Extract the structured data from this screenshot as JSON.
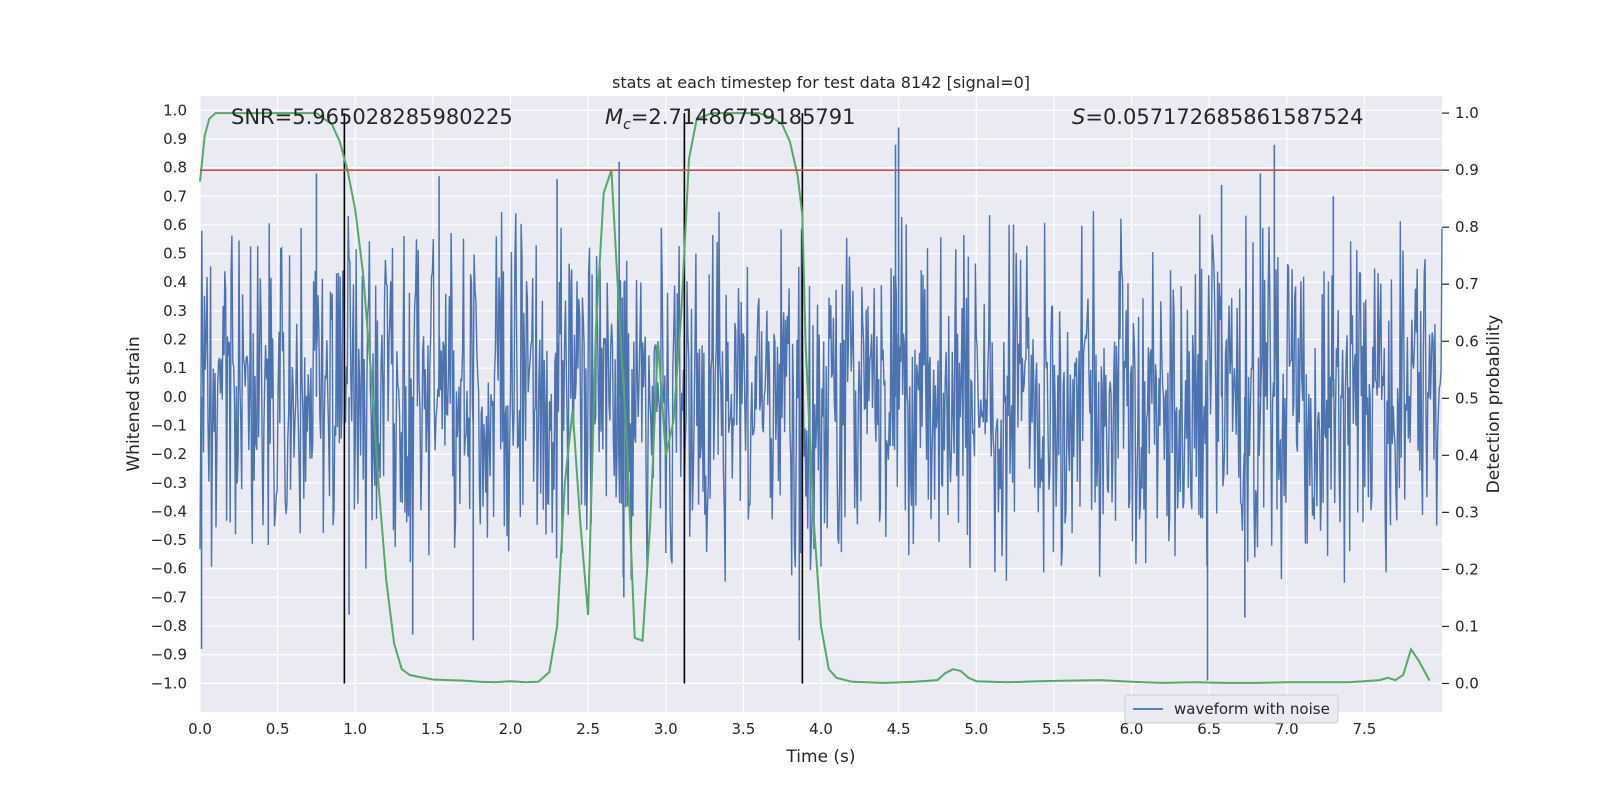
{
  "chart_data": {
    "type": "line",
    "title": "stats at each timestep for test data 8142 [signal=0]",
    "xlabel": "Time (s)",
    "ylabel_left": "Whitened strain",
    "ylabel_right": "Detection probability",
    "xlim": [
      0,
      8.0
    ],
    "ylim_left": [
      -1.1,
      1.05
    ],
    "ylim_right": [
      -0.05,
      1.03
    ],
    "x_ticks": [
      0.0,
      0.5,
      1.0,
      1.5,
      2.0,
      2.5,
      3.0,
      3.5,
      4.0,
      4.5,
      5.0,
      5.5,
      6.0,
      6.5,
      7.0,
      7.5
    ],
    "x_tick_labels": [
      "0.0",
      "0.5",
      "1.0",
      "1.5",
      "2.0",
      "2.5",
      "3.0",
      "3.5",
      "4.0",
      "4.5",
      "5.0",
      "5.5",
      "6.0",
      "6.5",
      "7.0",
      "7.5"
    ],
    "y_left_ticks": [
      1.0,
      0.9,
      0.8,
      0.7,
      0.6,
      0.5,
      0.4,
      0.3,
      0.2,
      0.1,
      0.0,
      -0.1,
      -0.2,
      -0.3,
      -0.4,
      -0.5,
      -0.6,
      -0.7,
      -0.8,
      -0.9,
      -1.0
    ],
    "y_left_tick_labels": [
      "1.0",
      "0.9",
      "0.8",
      "0.7",
      "0.6",
      "0.5",
      "0.4",
      "0.3",
      "0.2",
      "0.1",
      "0.0",
      "−0.1",
      "−0.2",
      "−0.3",
      "−0.4",
      "−0.5",
      "−0.6",
      "−0.7",
      "−0.8",
      "−0.9",
      "−1.0"
    ],
    "y_right_ticks": [
      1.0,
      0.9,
      0.8,
      0.7,
      0.6,
      0.5,
      0.4,
      0.3,
      0.2,
      0.1,
      0.0
    ],
    "y_right_tick_labels": [
      "1.0",
      "0.9",
      "0.8",
      "0.7",
      "0.6",
      "0.5",
      "0.4",
      "0.3",
      "0.2",
      "0.1",
      "0.0"
    ],
    "annotations": {
      "snr": "SNR=5.965028285980225",
      "mc_symbol": "M",
      "mc_sub": "c",
      "mc_value": "=2.71486759185791",
      "s_symbol": "S",
      "s_value": "=0.057172685861587524"
    },
    "legend": {
      "label": "waveform with noise",
      "placement": "lower-right"
    },
    "threshold_probability": 0.9,
    "vertical_markers_s": [
      0.93,
      3.12,
      3.88
    ],
    "waveform": {
      "name": "waveform with noise",
      "noise_envelope_strain": [
        -0.22,
        0.23
      ],
      "notable_peaks": [
        {
          "t": 0.01,
          "v": -0.88
        },
        {
          "t": 0.75,
          "v": 0.78
        },
        {
          "t": 0.96,
          "v": -0.76
        },
        {
          "t": 1.37,
          "v": -0.83
        },
        {
          "t": 1.54,
          "v": 0.77
        },
        {
          "t": 1.76,
          "v": -0.85
        },
        {
          "t": 2.3,
          "v": 0.76
        },
        {
          "t": 2.7,
          "v": 0.82
        },
        {
          "t": 2.73,
          "v": -0.7
        },
        {
          "t": 3.86,
          "v": -0.85
        },
        {
          "t": 4.5,
          "v": 0.94
        },
        {
          "t": 4.48,
          "v": 0.88
        },
        {
          "t": 6.49,
          "v": -0.99
        },
        {
          "t": 6.83,
          "v": 0.78
        },
        {
          "t": 6.92,
          "v": 0.88
        },
        {
          "t": 6.73,
          "v": -0.77
        },
        {
          "t": 6.58,
          "v": 0.74
        },
        {
          "t": 7.3,
          "v": 0.7
        }
      ]
    },
    "detection_probability": {
      "name": "detection probability",
      "x": [
        0.0,
        0.03,
        0.06,
        0.1,
        0.2,
        0.3,
        0.4,
        0.5,
        0.6,
        0.7,
        0.75,
        0.8,
        0.85,
        0.9,
        0.95,
        1.0,
        1.05,
        1.1,
        1.15,
        1.2,
        1.25,
        1.3,
        1.35,
        1.4,
        1.5,
        1.6,
        1.7,
        1.8,
        1.9,
        2.0,
        2.1,
        2.18,
        2.25,
        2.3,
        2.35,
        2.4,
        2.45,
        2.5,
        2.55,
        2.6,
        2.65,
        2.7,
        2.75,
        2.8,
        2.85,
        2.9,
        2.95,
        3.0,
        3.05,
        3.1,
        3.15,
        3.2,
        3.3,
        3.4,
        3.5,
        3.6,
        3.7,
        3.75,
        3.8,
        3.85,
        3.88,
        3.9,
        3.95,
        4.0,
        4.05,
        4.1,
        4.2,
        4.4,
        4.6,
        4.75,
        4.8,
        4.85,
        4.9,
        4.95,
        5.0,
        5.1,
        5.2,
        5.4,
        5.6,
        5.8,
        6.0,
        6.2,
        6.4,
        6.6,
        6.8,
        7.0,
        7.2,
        7.4,
        7.6,
        7.65,
        7.7,
        7.75,
        7.8,
        7.85,
        7.92
      ],
      "y": [
        0.88,
        0.96,
        0.99,
        1.0,
        1.0,
        1.0,
        1.0,
        1.0,
        1.0,
        1.0,
        1.0,
        0.99,
        0.98,
        0.95,
        0.9,
        0.83,
        0.72,
        0.55,
        0.35,
        0.18,
        0.07,
        0.025,
        0.015,
        0.012,
        0.007,
        0.006,
        0.005,
        0.003,
        0.002,
        0.004,
        0.002,
        0.003,
        0.02,
        0.1,
        0.35,
        0.48,
        0.28,
        0.12,
        0.62,
        0.86,
        0.9,
        0.65,
        0.42,
        0.08,
        0.075,
        0.28,
        0.6,
        0.4,
        0.46,
        0.65,
        0.92,
        0.99,
        1.0,
        1.0,
        1.0,
        1.0,
        0.99,
        0.98,
        0.95,
        0.89,
        0.82,
        0.6,
        0.3,
        0.1,
        0.025,
        0.01,
        0.003,
        0.001,
        0.003,
        0.006,
        0.018,
        0.025,
        0.022,
        0.01,
        0.004,
        0.003,
        0.002,
        0.004,
        0.005,
        0.006,
        0.003,
        0.001,
        0.002,
        0.001,
        0.001,
        0.002,
        0.002,
        0.002,
        0.006,
        0.01,
        0.006,
        0.015,
        0.06,
        0.04,
        0.005
      ]
    },
    "colors": {
      "axes_bg": "#eaeaf2",
      "grid": "#ffffff",
      "waveform": "#4c72b0",
      "probability": "#55a868",
      "threshold": "#c44e52",
      "markers": "#000000",
      "text": "#262626"
    }
  }
}
